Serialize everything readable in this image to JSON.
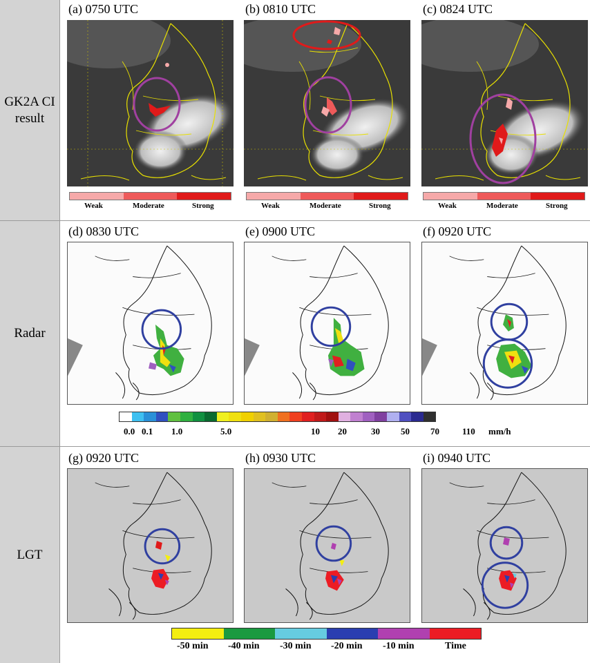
{
  "rows": [
    {
      "label_line1": "GK2A CI",
      "label_line2": "result"
    },
    {
      "label_line1": "Radar",
      "label_line2": ""
    },
    {
      "label_line1": "LGT",
      "label_line2": ""
    }
  ],
  "panels": {
    "a": "(a)  0750 UTC",
    "b": "(b)  0810 UTC",
    "c": "(c)  0824 UTC",
    "d": "(d)  0830 UTC",
    "e": "(e)  0900 UTC",
    "f": "(f)  0920 UTC",
    "g": "(g)  0920 UTC",
    "h": "(h)  0930 UTC",
    "i": "(i)  0940 UTC"
  },
  "ci_legend": {
    "labels": [
      "Weak",
      "Moderate",
      "Strong"
    ],
    "colors": [
      "#f6a9a9",
      "#ee5a5a",
      "#e01a1a"
    ]
  },
  "radar_legend": {
    "colors": [
      "#ffffff",
      "#3fc0f0",
      "#2a90d8",
      "#3050c0",
      "#60c040",
      "#30b040",
      "#109040",
      "#0a6a30",
      "#f0f020",
      "#f0e010",
      "#f0d000",
      "#e0c020",
      "#d0b030",
      "#f07020",
      "#f04020",
      "#e02020",
      "#c01a1a",
      "#a01010",
      "#e0b0e0",
      "#c080d0",
      "#a060c0",
      "#8040a0",
      "#b0b0f0",
      "#5050c0",
      "#2a2a90",
      "#303030"
    ],
    "ticks": [
      "0.0",
      "0.1",
      "1.0",
      "5.0",
      "10",
      "20",
      "30",
      "50",
      "70",
      "110"
    ],
    "unit": "mm/h"
  },
  "lgt_legend": {
    "labels": [
      "-50 min",
      "-40 min",
      "-30 min",
      "-20 min",
      "-10 min",
      "Time"
    ],
    "colors": [
      "#f4ee10",
      "#1a9a40",
      "#66cce0",
      "#2a3eb0",
      "#b040b0",
      "#ec1c24"
    ]
  }
}
